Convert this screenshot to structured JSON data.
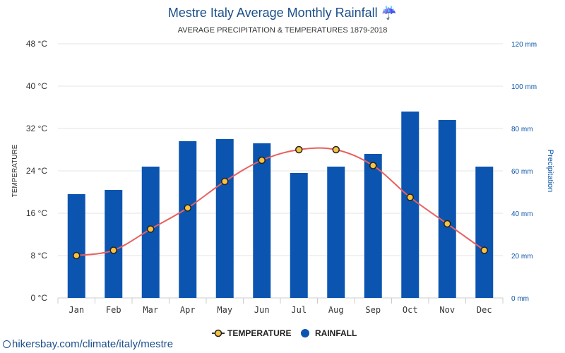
{
  "chart_data": {
    "type": "bar",
    "title": "Mestre Italy Average Monthly Rainfall",
    "title_icon": "umbrella-rain-icon",
    "title_icon_glyph": "☔",
    "subtitle": "AVERAGE PRECIPITATION & TEMPERATURES 1879-2018",
    "categories": [
      "Jan",
      "Feb",
      "Mar",
      "Apr",
      "May",
      "Jun",
      "Jul",
      "Aug",
      "Sep",
      "Oct",
      "Nov",
      "Dec"
    ],
    "series": [
      {
        "name": "TEMPERATURE",
        "kind": "line",
        "axis": "left",
        "color": "#e8605e",
        "marker_fill": "#f5c242",
        "values": [
          8,
          9,
          13,
          17,
          22,
          26,
          28,
          28,
          25,
          19,
          14,
          9
        ]
      },
      {
        "name": "RAINFALL",
        "kind": "bar",
        "axis": "right",
        "color": "#0b55b0",
        "values": [
          49,
          51,
          62,
          74,
          75,
          73,
          59,
          62,
          68,
          88,
          84,
          62
        ]
      }
    ],
    "left_axis": {
      "label": "TEMPERATURE",
      "min": 0,
      "max": 48,
      "ticks": [
        "0 °C",
        "8 °C",
        "16 °C",
        "24 °C",
        "32 °C",
        "40 °C",
        "48 °C"
      ]
    },
    "right_axis": {
      "label": "Precipitation",
      "min": 0,
      "max": 120,
      "ticks": [
        "0 mm",
        "20 mm",
        "40 mm",
        "60 mm",
        "80 mm",
        "100 mm",
        "120 mm"
      ]
    },
    "grid": true,
    "legend_position": "bottom-center"
  },
  "footer": {
    "source": "hikersbay.com/climate/italy/mestre",
    "icon": "globe-icon"
  }
}
